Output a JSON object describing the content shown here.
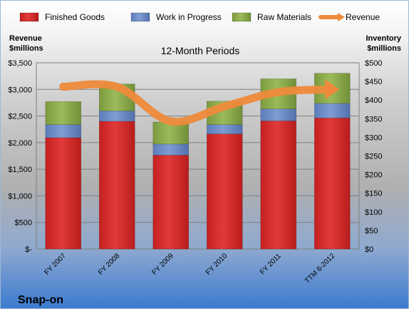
{
  "chart_data": {
    "type": "bar",
    "stacked": true,
    "title": "12-Month Periods",
    "company": "Snap-on",
    "categories": [
      "FY 2007",
      "FY 2008",
      "FY 2009",
      "FY 2010",
      "FY 2011",
      "TTM 6-2012"
    ],
    "left_axis": {
      "title_line1": "Revenue",
      "title_line2": "$millions",
      "range": [
        0,
        3500
      ],
      "ticks": [
        0,
        500,
        1000,
        1500,
        2000,
        2500,
        3000,
        3500
      ],
      "tick_labels": [
        "$-",
        "$500",
        "$1,000",
        "$1,500",
        "$2,000",
        "$2,500",
        "$3,000",
        "$3,500"
      ]
    },
    "right_axis": {
      "title_line1": "Inventory",
      "title_line2": "$millions",
      "range": [
        0,
        500
      ],
      "ticks": [
        0,
        50,
        100,
        150,
        200,
        250,
        300,
        350,
        400,
        450,
        500
      ],
      "tick_labels": [
        "$0",
        "$50",
        "$100",
        "$150",
        "$200",
        "$250",
        "$300",
        "$350",
        "$400",
        "$450",
        "$500"
      ]
    },
    "series": [
      {
        "name": "Finished Goods",
        "axis": "right",
        "color": "#d42b2b",
        "values": [
          299,
          343,
          252,
          309,
          344,
          352
        ]
      },
      {
        "name": "Work in Progress",
        "axis": "right",
        "color": "#6d8dc7",
        "values": [
          35,
          28,
          30,
          25,
          32,
          39
        ]
      },
      {
        "name": "Raw Materials",
        "axis": "right",
        "color": "#8cac4e",
        "values": [
          62,
          72,
          59,
          63,
          81,
          81
        ]
      },
      {
        "name": "Revenue",
        "axis": "left",
        "type": "line",
        "color": "#ee8a3a",
        "values": [
          3050,
          3050,
          2400,
          2680,
          2950,
          3000
        ]
      }
    ],
    "legend_position": "top",
    "grid": true,
    "colors": {
      "background_top": "#b7b7b7",
      "background_bottom": "#3a7ad0",
      "gridline": "#7f7f7f"
    }
  }
}
